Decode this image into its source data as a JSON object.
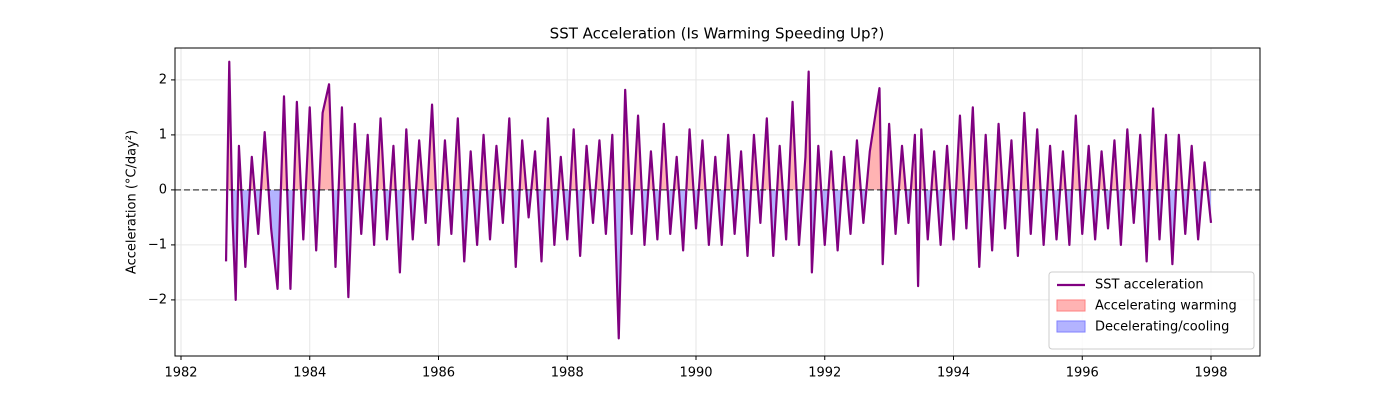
{
  "chart_data": {
    "type": "line",
    "title": "SST Acceleration (Is Warming Speeding Up?)",
    "y_label": "Acceleration (°C/day²)",
    "x": [
      1982.7,
      1982.75,
      1982.8,
      1982.85,
      1982.9,
      1983.0,
      1983.1,
      1983.2,
      1983.3,
      1983.4,
      1983.5,
      1983.6,
      1983.7,
      1983.8,
      1983.9,
      1984.0,
      1984.1,
      1984.2,
      1984.3,
      1984.4,
      1984.5,
      1984.6,
      1984.7,
      1984.8,
      1984.9,
      1985.0,
      1985.1,
      1985.2,
      1985.3,
      1985.4,
      1985.5,
      1985.6,
      1985.7,
      1985.8,
      1985.9,
      1986.0,
      1986.1,
      1986.2,
      1986.3,
      1986.4,
      1986.5,
      1986.6,
      1986.7,
      1986.8,
      1986.9,
      1987.0,
      1987.1,
      1987.2,
      1987.3,
      1987.4,
      1987.5,
      1987.6,
      1987.7,
      1987.8,
      1987.9,
      1988.0,
      1988.1,
      1988.2,
      1988.3,
      1988.4,
      1988.5,
      1988.6,
      1988.7,
      1988.8,
      1988.9,
      1989.0,
      1989.1,
      1989.2,
      1989.3,
      1989.4,
      1989.5,
      1989.6,
      1989.7,
      1989.8,
      1989.9,
      1990.0,
      1990.1,
      1990.2,
      1990.3,
      1990.4,
      1990.5,
      1990.6,
      1990.7,
      1990.8,
      1990.9,
      1991.0,
      1991.1,
      1991.2,
      1991.3,
      1991.4,
      1991.5,
      1991.6,
      1991.7,
      1991.75,
      1991.8,
      1991.9,
      1992.0,
      1992.1,
      1992.2,
      1992.3,
      1992.4,
      1992.5,
      1992.6,
      1992.7,
      1992.85,
      1992.9,
      1993.0,
      1993.1,
      1993.2,
      1993.3,
      1993.4,
      1993.45,
      1993.5,
      1993.6,
      1993.7,
      1993.8,
      1993.9,
      1994.0,
      1994.1,
      1994.2,
      1994.3,
      1994.4,
      1994.5,
      1994.6,
      1994.7,
      1994.8,
      1994.9,
      1995.0,
      1995.1,
      1995.2,
      1995.3,
      1995.4,
      1995.5,
      1995.6,
      1995.7,
      1995.8,
      1995.9,
      1996.0,
      1996.1,
      1996.2,
      1996.3,
      1996.4,
      1996.5,
      1996.6,
      1996.7,
      1996.8,
      1996.9,
      1997.0,
      1997.1,
      1997.2,
      1997.3,
      1997.4,
      1997.5,
      1997.6,
      1997.7,
      1997.8,
      1997.9,
      1998.0
    ],
    "series": [
      {
        "name": "SST acceleration",
        "color": "#800080",
        "values": [
          -1.3,
          2.33,
          -0.5,
          -2.0,
          0.8,
          -1.4,
          0.6,
          -0.8,
          1.05,
          -0.7,
          -1.8,
          1.7,
          -1.8,
          1.6,
          -0.9,
          1.5,
          -1.1,
          1.4,
          1.92,
          -1.4,
          1.5,
          -1.95,
          1.2,
          -0.8,
          1.0,
          -1.0,
          1.3,
          -0.9,
          0.8,
          -1.5,
          1.1,
          -0.9,
          0.9,
          -0.6,
          1.55,
          -1.0,
          0.9,
          -0.8,
          1.3,
          -1.3,
          0.7,
          -1.0,
          1.0,
          -0.9,
          0.8,
          -0.6,
          1.3,
          -1.4,
          0.9,
          -0.5,
          0.7,
          -1.3,
          1.3,
          -1.0,
          0.6,
          -0.9,
          1.1,
          -1.2,
          0.8,
          -0.6,
          0.9,
          -0.8,
          1.0,
          -2.7,
          1.82,
          -0.8,
          1.35,
          -1.0,
          0.7,
          -0.9,
          1.2,
          -0.8,
          0.6,
          -1.1,
          1.1,
          -0.7,
          0.9,
          -1.0,
          0.6,
          -1.0,
          1.0,
          -0.8,
          0.7,
          -1.2,
          1.0,
          -0.6,
          1.3,
          -1.2,
          0.8,
          -0.9,
          1.6,
          -1.0,
          0.6,
          2.15,
          -1.5,
          0.8,
          -1.0,
          0.7,
          -1.1,
          0.6,
          -0.8,
          0.9,
          -0.6,
          0.7,
          1.85,
          -1.35,
          1.2,
          -0.8,
          0.8,
          -0.6,
          1.0,
          -1.75,
          1.1,
          -0.9,
          0.7,
          -1.0,
          0.8,
          -0.9,
          1.35,
          -0.7,
          1.5,
          -1.4,
          1.0,
          -1.1,
          1.2,
          -0.7,
          0.9,
          -1.2,
          1.4,
          -0.8,
          1.1,
          -1.0,
          0.8,
          -0.9,
          0.7,
          -1.0,
          1.35,
          -0.8,
          0.8,
          -0.9,
          0.7,
          -0.7,
          0.9,
          -1.0,
          1.1,
          -0.6,
          1.0,
          -1.3,
          1.48,
          -0.9,
          1.0,
          -1.35,
          1.0,
          -0.8,
          0.8,
          -0.9,
          0.5,
          -0.6
        ]
      }
    ],
    "fills": [
      {
        "name": "Accelerating warming",
        "color": "#ff8080"
      },
      {
        "name": "Decelerating/cooling",
        "color": "#8080ff"
      }
    ],
    "xlim": [
      1981.907,
      1998.761
    ],
    "ylim": [
      -3.02,
      2.58
    ],
    "xticks": [
      1982,
      1984,
      1986,
      1988,
      1990,
      1992,
      1994,
      1996,
      1998
    ],
    "yticks": [
      {
        "value": -2,
        "label": "−2"
      },
      {
        "value": -1,
        "label": "−1"
      },
      0,
      1,
      2
    ],
    "grid": true,
    "legend": "lower right"
  }
}
